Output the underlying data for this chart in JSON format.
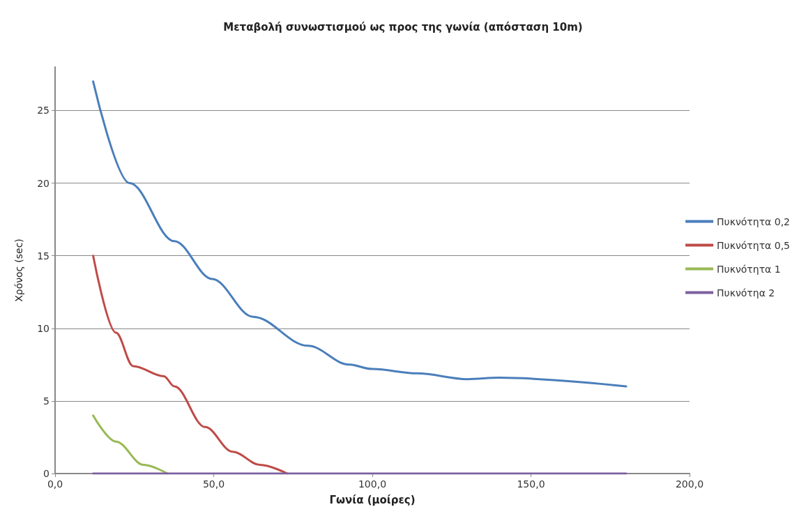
{
  "chart_data": {
    "type": "line",
    "title": "Μεταβολή συνωστισμού ως προς της γωνία (απόσταση 10m)",
    "xlabel": "Γωνία (μοίρες)",
    "ylabel": "Χρόνος (sec)",
    "xlim": [
      0,
      200
    ],
    "xticks": [
      {
        "value": 0,
        "label": "0,0"
      },
      {
        "value": 50,
        "label": "50,0"
      },
      {
        "value": 100,
        "label": "100,0"
      },
      {
        "value": 150,
        "label": "150,0"
      },
      {
        "value": 200,
        "label": "200,0"
      }
    ],
    "ylim": [
      0,
      28
    ],
    "yticks": [
      0,
      5,
      10,
      15,
      20,
      25
    ],
    "grid": "y",
    "legend": "right",
    "marker": "none",
    "line_style": "solid",
    "series": [
      {
        "name": "Πυκνότητα 0,2",
        "color": "#4a7ebb",
        "x": [
          12,
          23.5,
          37.6,
          49.5,
          62.4,
          79.7,
          92.7,
          100,
          114,
          130,
          140,
          180
        ],
        "values": [
          27,
          20,
          16,
          13.4,
          10.8,
          8.8,
          7.5,
          7.2,
          6.9,
          6.5,
          6.6,
          6
        ]
      },
      {
        "name": "Πυκνότητα 0,5",
        "color": "#be4b48",
        "x": [
          12,
          19.2,
          24.6,
          34.3,
          37.6,
          47.3,
          56,
          64.6,
          73.2
        ],
        "values": [
          15,
          9.7,
          7.4,
          6.7,
          6,
          3.2,
          1.5,
          0.6,
          0
        ]
      },
      {
        "name": "Πυκνότητα 1",
        "color": "#98b954",
        "x": [
          12,
          19.2,
          27.9,
          35.4
        ],
        "values": [
          4,
          2.2,
          0.6,
          0
        ]
      },
      {
        "name": "Πυκνότηα 2",
        "color": "#7d60a0",
        "x": [
          12,
          180
        ],
        "values": [
          0,
          0
        ]
      }
    ]
  }
}
